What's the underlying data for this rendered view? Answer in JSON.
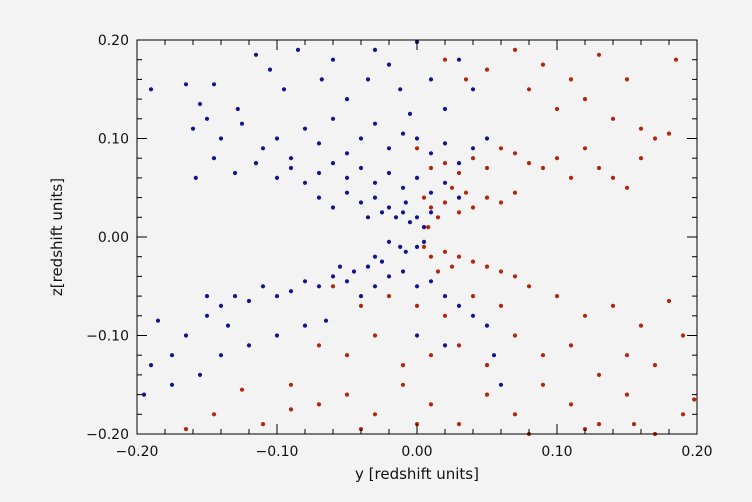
{
  "chart_data": {
    "type": "scatter",
    "title": "",
    "xlabel": "y [redshift units]",
    "ylabel": "z[redshift units]",
    "xlim": [
      -0.2,
      0.2
    ],
    "ylim": [
      -0.2,
      0.2
    ],
    "grid": false,
    "x_ticks": [
      -0.2,
      -0.1,
      0.0,
      0.1,
      0.2
    ],
    "y_ticks": [
      -0.2,
      -0.1,
      0.0,
      0.1,
      0.2
    ],
    "x_tick_labels": [
      "−0.20",
      "−0.10",
      "0.00",
      "0.10",
      "0.20"
    ],
    "y_tick_labels": [
      "−0.20",
      "−0.10",
      "0.00",
      "0.10",
      "0.20"
    ],
    "series": [
      {
        "color": "#13158e",
        "points": [
          [
            -0.19,
            0.15
          ],
          [
            -0.165,
            0.155
          ],
          [
            -0.155,
            0.135
          ],
          [
            -0.145,
            0.155
          ],
          [
            -0.15,
            0.12
          ],
          [
            -0.128,
            0.13
          ],
          [
            -0.115,
            0.185
          ],
          [
            -0.105,
            0.17
          ],
          [
            -0.095,
            0.15
          ],
          [
            -0.085,
            0.19
          ],
          [
            -0.068,
            0.16
          ],
          [
            -0.06,
            0.18
          ],
          [
            -0.05,
            0.14
          ],
          [
            -0.035,
            0.16
          ],
          [
            -0.03,
            0.19
          ],
          [
            -0.02,
            0.175
          ],
          [
            -0.012,
            0.15
          ],
          [
            0.0,
            0.198
          ],
          [
            -0.005,
            0.125
          ],
          [
            0.01,
            0.16
          ],
          [
            0.02,
            0.13
          ],
          [
            0.03,
            0.18
          ],
          [
            0.04,
            0.15
          ],
          [
            0.05,
            0.1
          ],
          [
            -0.16,
            0.11
          ],
          [
            -0.14,
            0.1
          ],
          [
            -0.125,
            0.115
          ],
          [
            -0.11,
            0.09
          ],
          [
            -0.1,
            0.1
          ],
          [
            -0.09,
            0.08
          ],
          [
            -0.08,
            0.11
          ],
          [
            -0.07,
            0.095
          ],
          [
            -0.06,
            0.12
          ],
          [
            -0.05,
            0.085
          ],
          [
            -0.04,
            0.1
          ],
          [
            -0.03,
            0.115
          ],
          [
            -0.02,
            0.09
          ],
          [
            -0.01,
            0.105
          ],
          [
            0.0,
            0.1
          ],
          [
            0.01,
            0.085
          ],
          [
            0.02,
            0.095
          ],
          [
            0.03,
            0.075
          ],
          [
            0.04,
            0.09
          ],
          [
            -0.158,
            0.06
          ],
          [
            -0.145,
            0.08
          ],
          [
            -0.13,
            0.065
          ],
          [
            -0.115,
            0.075
          ],
          [
            -0.1,
            0.06
          ],
          [
            -0.09,
            0.07
          ],
          [
            -0.08,
            0.055
          ],
          [
            -0.07,
            0.065
          ],
          [
            -0.06,
            0.075
          ],
          [
            -0.05,
            0.06
          ],
          [
            -0.04,
            0.07
          ],
          [
            -0.03,
            0.055
          ],
          [
            -0.02,
            0.065
          ],
          [
            -0.01,
            0.05
          ],
          [
            0.0,
            0.06
          ],
          [
            0.01,
            0.045
          ],
          [
            0.02,
            0.055
          ],
          [
            0.03,
            0.04
          ],
          [
            -0.07,
            0.04
          ],
          [
            -0.06,
            0.03
          ],
          [
            -0.05,
            0.045
          ],
          [
            -0.04,
            0.035
          ],
          [
            -0.03,
            0.04
          ],
          [
            -0.025,
            0.025
          ],
          [
            -0.02,
            0.03
          ],
          [
            -0.015,
            0.02
          ],
          [
            -0.01,
            0.025
          ],
          [
            -0.005,
            0.015
          ],
          [
            0.0,
            0.02
          ],
          [
            0.005,
            0.01
          ],
          [
            0.01,
            0.025
          ],
          [
            -0.035,
            0.02
          ],
          [
            -0.008,
            0.035
          ],
          [
            -0.02,
            -0.005
          ],
          [
            -0.012,
            -0.01
          ],
          [
            -0.008,
            -0.015
          ],
          [
            0.0,
            -0.01
          ],
          [
            0.005,
            -0.005
          ],
          [
            -0.03,
            -0.02
          ],
          [
            -0.025,
            -0.025
          ],
          [
            -0.035,
            -0.03
          ],
          [
            -0.045,
            -0.035
          ],
          [
            -0.055,
            -0.03
          ],
          [
            -0.05,
            -0.045
          ],
          [
            -0.06,
            -0.04
          ],
          [
            -0.07,
            -0.05
          ],
          [
            -0.08,
            -0.045
          ],
          [
            -0.09,
            -0.055
          ],
          [
            -0.1,
            -0.06
          ],
          [
            -0.11,
            -0.05
          ],
          [
            -0.12,
            -0.065
          ],
          [
            -0.13,
            -0.06
          ],
          [
            -0.14,
            -0.07
          ],
          [
            -0.15,
            -0.06
          ],
          [
            -0.04,
            -0.06
          ],
          [
            -0.03,
            -0.05
          ],
          [
            -0.02,
            -0.04
          ],
          [
            -0.01,
            -0.035
          ],
          [
            0.0,
            -0.05
          ],
          [
            0.01,
            -0.045
          ],
          [
            0.02,
            -0.06
          ],
          [
            0.03,
            -0.07
          ],
          [
            0.04,
            -0.08
          ],
          [
            -0.065,
            -0.085
          ],
          [
            -0.08,
            -0.09
          ],
          [
            -0.1,
            -0.1
          ],
          [
            -0.12,
            -0.11
          ],
          [
            -0.135,
            -0.09
          ],
          [
            -0.15,
            -0.08
          ],
          [
            -0.165,
            -0.1
          ],
          [
            -0.175,
            -0.12
          ],
          [
            -0.185,
            -0.085
          ],
          [
            -0.19,
            -0.13
          ],
          [
            -0.195,
            -0.16
          ],
          [
            -0.175,
            -0.15
          ],
          [
            -0.155,
            -0.14
          ],
          [
            -0.14,
            -0.12
          ],
          [
            0.05,
            -0.09
          ],
          [
            0.055,
            -0.12
          ],
          [
            0.06,
            -0.15
          ],
          [
            0.02,
            -0.11
          ],
          [
            0.0,
            -0.1
          ]
        ]
      },
      {
        "color": "#b5250d",
        "points": [
          [
            0.02,
            0.18
          ],
          [
            0.035,
            0.16
          ],
          [
            0.05,
            0.17
          ],
          [
            0.07,
            0.19
          ],
          [
            0.08,
            0.15
          ],
          [
            0.09,
            0.175
          ],
          [
            0.1,
            0.13
          ],
          [
            0.11,
            0.16
          ],
          [
            0.12,
            0.14
          ],
          [
            0.13,
            0.185
          ],
          [
            0.14,
            0.12
          ],
          [
            0.15,
            0.16
          ],
          [
            0.16,
            0.11
          ],
          [
            0.17,
            0.1
          ],
          [
            0.18,
            0.105
          ],
          [
            0.185,
            0.18
          ],
          [
            0.0,
            0.09
          ],
          [
            0.01,
            0.07
          ],
          [
            0.02,
            0.075
          ],
          [
            0.03,
            0.065
          ],
          [
            0.04,
            0.08
          ],
          [
            0.05,
            0.07
          ],
          [
            0.06,
            0.09
          ],
          [
            0.07,
            0.085
          ],
          [
            0.08,
            0.075
          ],
          [
            0.09,
            0.07
          ],
          [
            0.1,
            0.08
          ],
          [
            0.11,
            0.06
          ],
          [
            0.12,
            0.09
          ],
          [
            0.13,
            0.07
          ],
          [
            0.14,
            0.06
          ],
          [
            0.15,
            0.05
          ],
          [
            0.16,
            0.08
          ],
          [
            0.005,
            0.04
          ],
          [
            0.01,
            0.03
          ],
          [
            0.02,
            0.035
          ],
          [
            0.03,
            0.025
          ],
          [
            0.04,
            0.03
          ],
          [
            0.05,
            0.04
          ],
          [
            0.06,
            0.035
          ],
          [
            0.07,
            0.045
          ],
          [
            0.025,
            0.05
          ],
          [
            0.035,
            0.045
          ],
          [
            0.015,
            0.02
          ],
          [
            0.008,
            0.01
          ],
          [
            0.005,
            -0.01
          ],
          [
            0.01,
            -0.02
          ],
          [
            0.02,
            -0.015
          ],
          [
            0.03,
            -0.02
          ],
          [
            0.04,
            -0.025
          ],
          [
            0.05,
            -0.03
          ],
          [
            0.06,
            -0.035
          ],
          [
            0.07,
            -0.04
          ],
          [
            0.025,
            -0.03
          ],
          [
            0.015,
            -0.035
          ],
          [
            -0.06,
            -0.05
          ],
          [
            -0.04,
            -0.07
          ],
          [
            -0.02,
            -0.06
          ],
          [
            0.0,
            -0.07
          ],
          [
            0.02,
            -0.08
          ],
          [
            0.04,
            -0.06
          ],
          [
            0.06,
            -0.07
          ],
          [
            0.08,
            -0.05
          ],
          [
            0.1,
            -0.06
          ],
          [
            0.12,
            -0.08
          ],
          [
            0.14,
            -0.07
          ],
          [
            0.16,
            -0.09
          ],
          [
            0.18,
            -0.065
          ],
          [
            -0.07,
            -0.11
          ],
          [
            -0.05,
            -0.12
          ],
          [
            -0.03,
            -0.1
          ],
          [
            -0.01,
            -0.13
          ],
          [
            0.01,
            -0.12
          ],
          [
            0.03,
            -0.11
          ],
          [
            0.05,
            -0.13
          ],
          [
            0.07,
            -0.1
          ],
          [
            0.09,
            -0.12
          ],
          [
            0.11,
            -0.11
          ],
          [
            0.13,
            -0.14
          ],
          [
            0.15,
            -0.12
          ],
          [
            0.17,
            -0.13
          ],
          [
            0.19,
            -0.1
          ],
          [
            -0.09,
            -0.15
          ],
          [
            -0.07,
            -0.17
          ],
          [
            -0.05,
            -0.16
          ],
          [
            -0.03,
            -0.18
          ],
          [
            -0.01,
            -0.15
          ],
          [
            0.01,
            -0.17
          ],
          [
            0.03,
            -0.19
          ],
          [
            0.05,
            -0.16
          ],
          [
            0.07,
            -0.18
          ],
          [
            0.09,
            -0.15
          ],
          [
            0.11,
            -0.17
          ],
          [
            0.13,
            -0.19
          ],
          [
            0.15,
            -0.16
          ],
          [
            0.17,
            -0.2
          ],
          [
            0.19,
            -0.18
          ],
          [
            -0.165,
            -0.195
          ],
          [
            -0.145,
            -0.18
          ],
          [
            -0.125,
            -0.155
          ],
          [
            -0.11,
            -0.19
          ],
          [
            -0.09,
            -0.175
          ],
          [
            -0.04,
            -0.195
          ],
          [
            0.0,
            -0.19
          ],
          [
            0.08,
            -0.2
          ],
          [
            0.12,
            -0.195
          ],
          [
            0.155,
            -0.19
          ],
          [
            0.198,
            -0.165
          ]
        ]
      }
    ]
  }
}
